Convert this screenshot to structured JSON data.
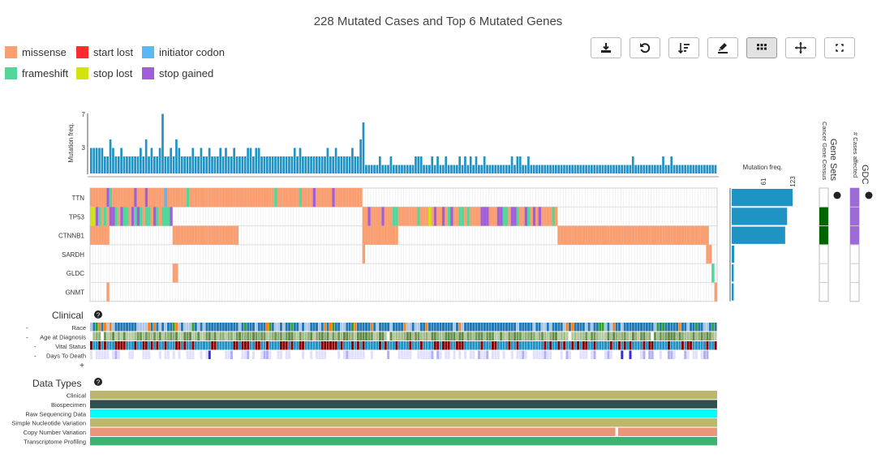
{
  "title": "228 Mutated Cases and Top 6 Mutated Genes",
  "legend": [
    {
      "label": "missense",
      "color": "#fa9f71"
    },
    {
      "label": "start lost",
      "color": "#ff2a2a"
    },
    {
      "label": "initiator codon",
      "color": "#5cb8f4"
    },
    {
      "label": "frameshift",
      "color": "#52d69a"
    },
    {
      "label": "stop lost",
      "color": "#d3e30f"
    },
    {
      "label": "stop gained",
      "color": "#a05ed9"
    }
  ],
  "toolbar": [
    {
      "name": "download-button",
      "icon": "download-icon"
    },
    {
      "name": "reload-button",
      "icon": "reload-icon"
    },
    {
      "name": "sort-button",
      "icon": "sort-icon"
    },
    {
      "name": "color-button",
      "icon": "paint-icon"
    },
    {
      "name": "grid-toggle-button",
      "icon": "grid-icon",
      "active": true
    },
    {
      "name": "crosshair-button",
      "icon": "crosshair-icon"
    },
    {
      "name": "fullscreen-button",
      "icon": "fullscreen-icon"
    }
  ],
  "top_hist": {
    "ylabel": "Mutation freq.",
    "ticks": [
      "7",
      "3"
    ]
  },
  "genes": [
    {
      "symbol": "TTN",
      "count": 123,
      "cgc": false,
      "gdc": true
    },
    {
      "symbol": "TP53",
      "count": 112,
      "cgc": true,
      "gdc": true
    },
    {
      "symbol": "CTNNB1",
      "count": 108,
      "cgc": true,
      "gdc": true
    },
    {
      "symbol": "SARDH",
      "count": 5,
      "cgc": false,
      "gdc": false
    },
    {
      "symbol": "GLDC",
      "count": 4,
      "cgc": false,
      "gdc": false
    },
    {
      "symbol": "GNMT",
      "count": 4,
      "cgc": false,
      "gdc": false
    }
  ],
  "side_hist": {
    "label": "Mutation freq.",
    "ticks": [
      "61",
      "123"
    ]
  },
  "gene_sets": {
    "title": "Gene Sets",
    "track_label": "Cancer Gene Census",
    "color": "#006400"
  },
  "gdc": {
    "title": "GDC",
    "track_label": "# Cases affected",
    "color": "#9b6bd6"
  },
  "clinical": {
    "title": "Clinical",
    "tracks": [
      {
        "label": "Race",
        "toggle": "-"
      },
      {
        "label": "Age at Diagnosis",
        "toggle": "-"
      },
      {
        "label": "Vital Status",
        "toggle": "-"
      },
      {
        "label": "Days To Death",
        "toggle": "-"
      }
    ],
    "add": "+"
  },
  "data_types": {
    "title": "Data Types",
    "tracks": [
      {
        "label": "Clinical",
        "color": "#bdb76b"
      },
      {
        "label": "Biospecimen",
        "color": "#2f4f4f"
      },
      {
        "label": "Raw Sequencing Data",
        "color": "#00ffff"
      },
      {
        "label": "Simple Nucleotide Variation",
        "color": "#bdb76b"
      },
      {
        "label": "Copy Number Variation",
        "color": "#e9967a"
      },
      {
        "label": "Transcriptome Profiling",
        "color": "#3cb371"
      }
    ]
  },
  "help_symbol": "?"
}
